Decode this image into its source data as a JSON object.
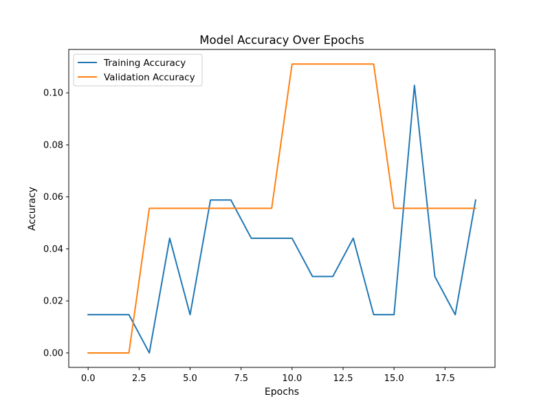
{
  "chart_data": {
    "type": "line",
    "title": "Model Accuracy Over Epochs",
    "xlabel": "Epochs",
    "ylabel": "Accuracy",
    "xlim": [
      -0.95,
      19.95
    ],
    "ylim": [
      -0.00556,
      0.1167
    ],
    "xticks": [
      0.0,
      2.5,
      5.0,
      7.5,
      10.0,
      12.5,
      15.0,
      17.5
    ],
    "xtick_labels": [
      "0.0",
      "2.5",
      "5.0",
      "7.5",
      "10.0",
      "12.5",
      "15.0",
      "17.5"
    ],
    "yticks": [
      0.0,
      0.02,
      0.04,
      0.06,
      0.08,
      0.1
    ],
    "ytick_labels": [
      "0.00",
      "0.02",
      "0.04",
      "0.06",
      "0.08",
      "0.10"
    ],
    "grid": false,
    "legend_position": "top-left",
    "x": [
      0,
      1,
      2,
      3,
      4,
      5,
      6,
      7,
      8,
      9,
      10,
      11,
      12,
      13,
      14,
      15,
      16,
      17,
      18,
      19
    ],
    "series": [
      {
        "name": "Training Accuracy",
        "color": "#1f77b4",
        "values": [
          0.0147,
          0.0147,
          0.0147,
          0.0,
          0.0441,
          0.0147,
          0.0588,
          0.0588,
          0.0441,
          0.0441,
          0.0441,
          0.0294,
          0.0294,
          0.0441,
          0.0147,
          0.0147,
          0.1029,
          0.0294,
          0.0147,
          0.0588
        ]
      },
      {
        "name": "Validation Accuracy",
        "color": "#ff7f0e",
        "values": [
          0.0,
          0.0,
          0.0,
          0.0556,
          0.0556,
          0.0556,
          0.0556,
          0.0556,
          0.0556,
          0.0556,
          0.1111,
          0.1111,
          0.1111,
          0.1111,
          0.1111,
          0.0556,
          0.0556,
          0.0556,
          0.0556,
          0.0556
        ]
      }
    ]
  }
}
